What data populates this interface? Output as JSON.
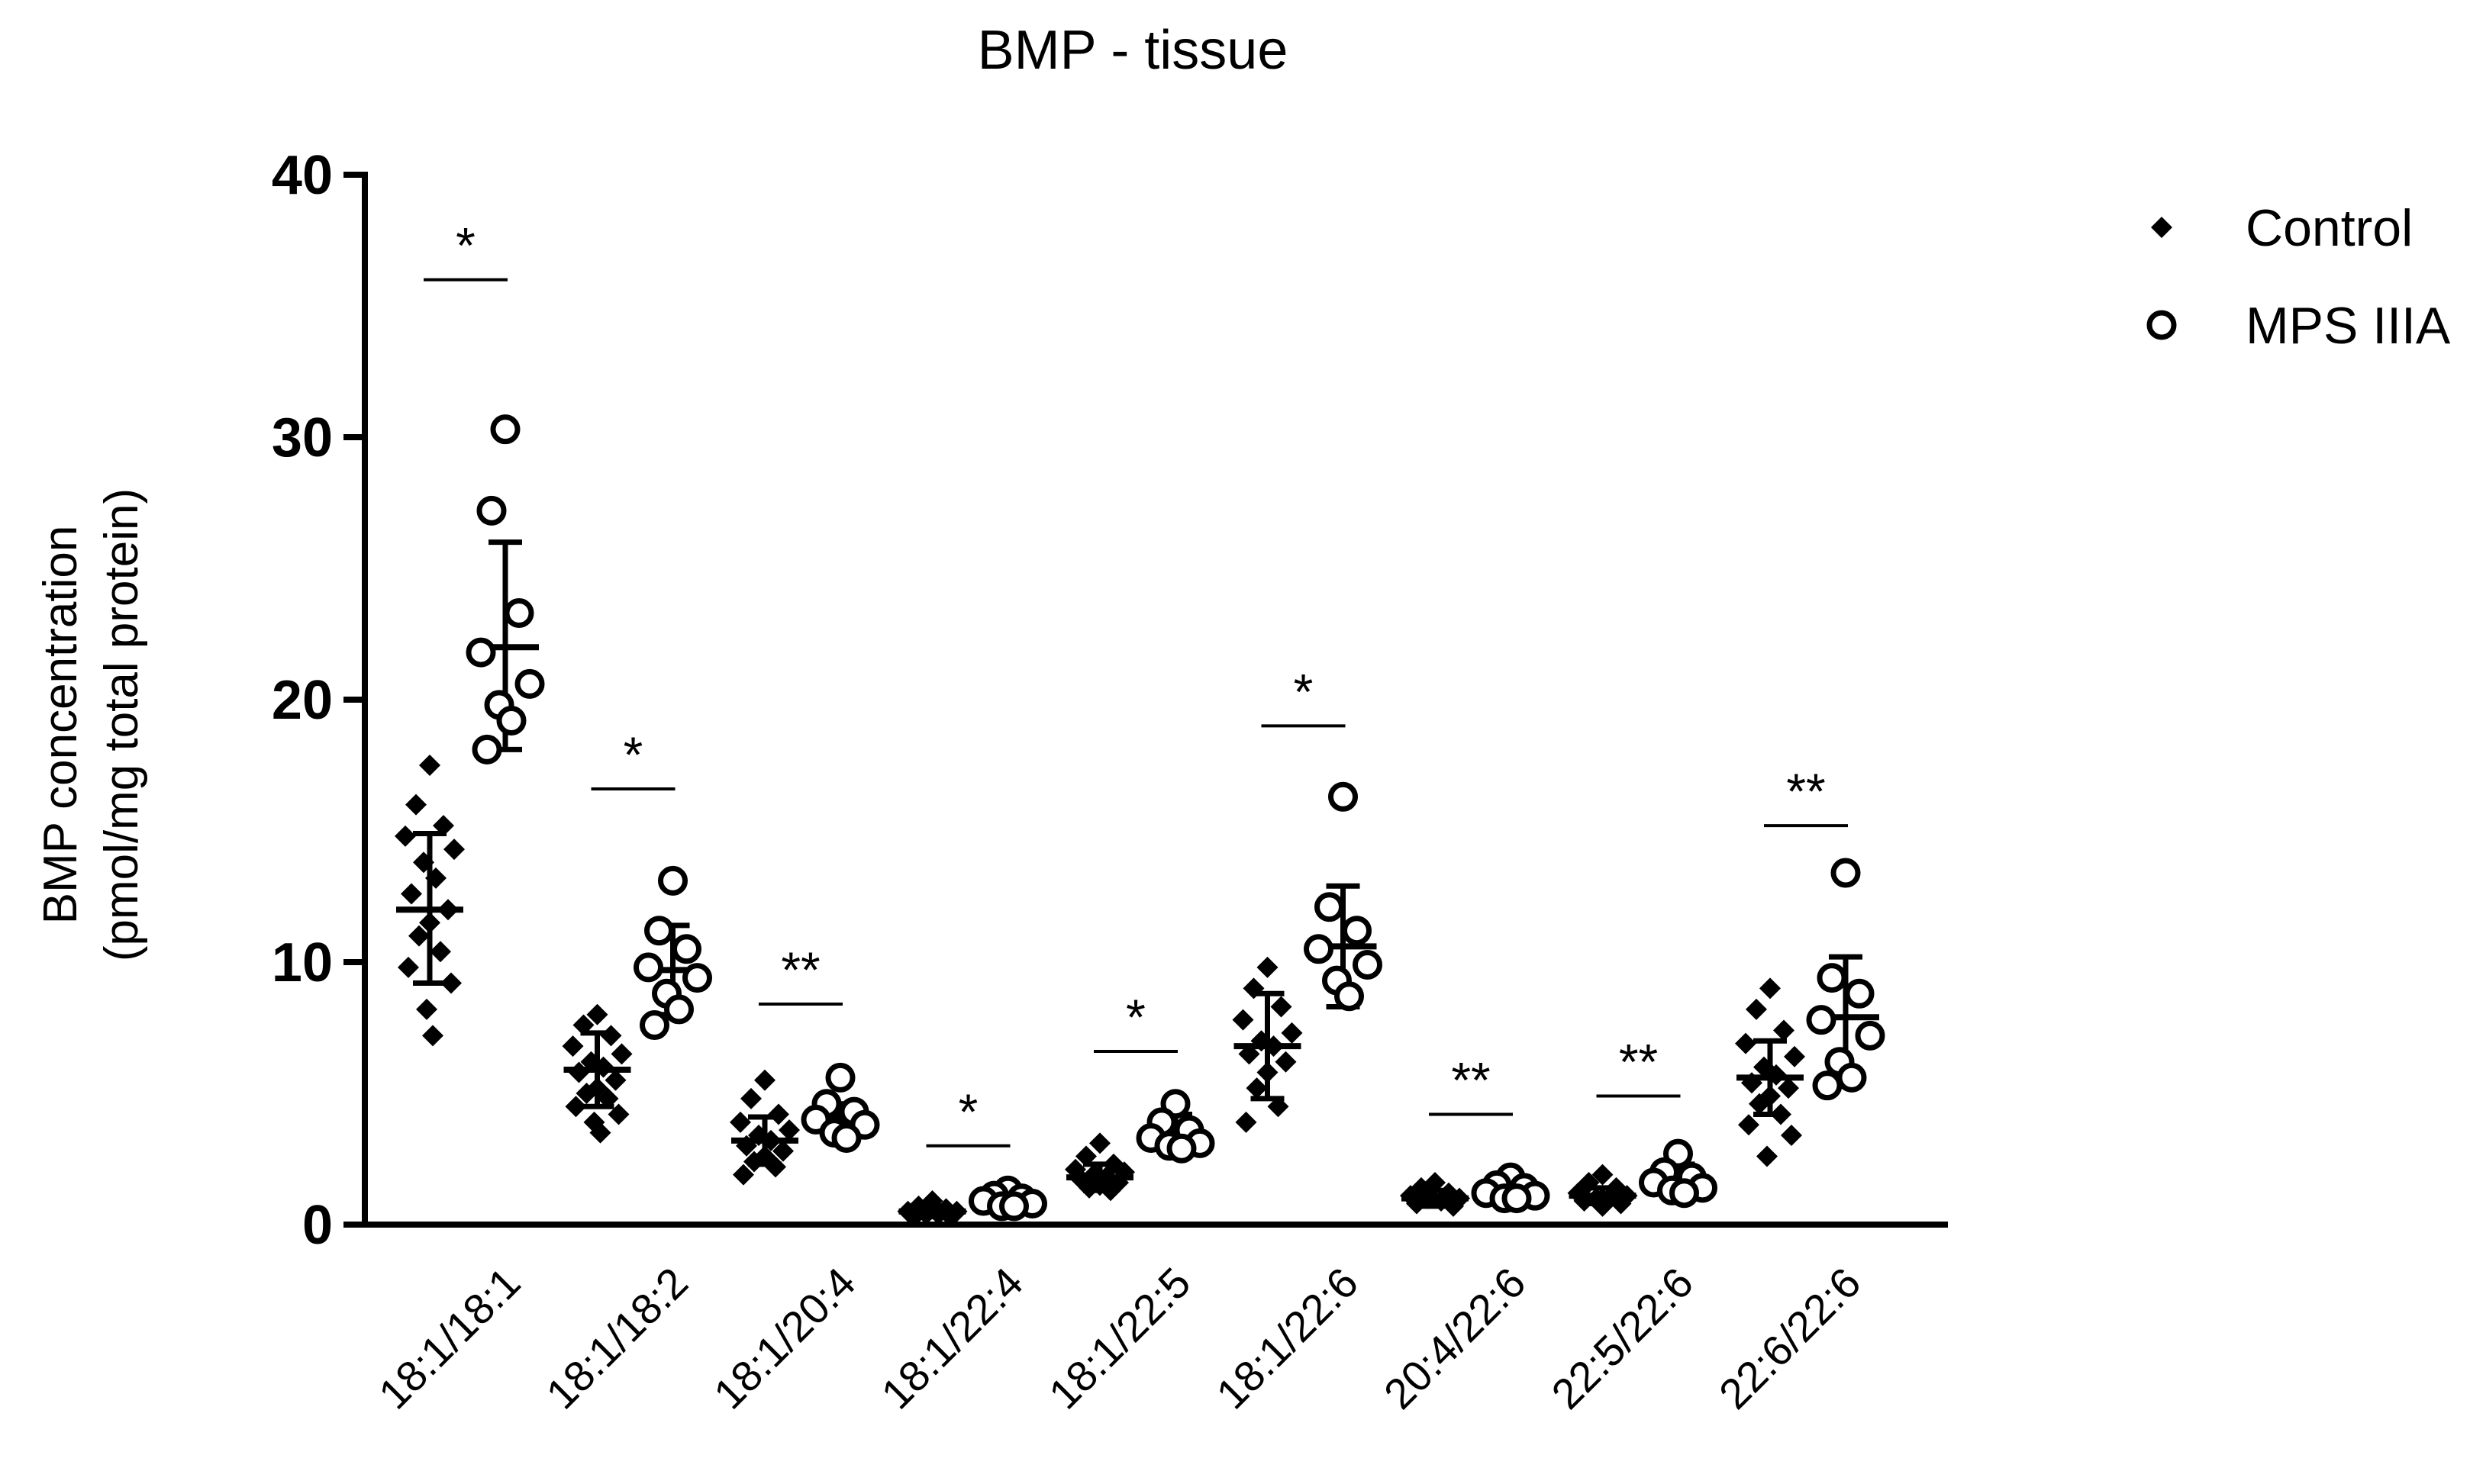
{
  "chart_data": {
    "type": "scatter",
    "title": "BMP - tissue",
    "ylabel": [
      "BMP concentration",
      "(pmol/mg total protein)"
    ],
    "xlabel": "",
    "ylim": [
      0,
      40
    ],
    "yticks": [
      0,
      10,
      20,
      30,
      40
    ],
    "categories": [
      "18:1/18:1",
      "18:1/18:2",
      "18:1/20:4",
      "18:1/22:4",
      "18:1/22:5",
      "18:1/22:6",
      "20:4/22:6",
      "22:5/22:6",
      "22:6/22:6"
    ],
    "legend_position": "top-right",
    "series": [
      {
        "name": "Control",
        "marker": "diamond-filled",
        "color": "#000000",
        "mean": [
          12.0,
          5.9,
          3.2,
          0.5,
          1.8,
          6.8,
          1.0,
          1.1,
          5.6
        ],
        "sd_upper": [
          14.9,
          7.3,
          4.1,
          0.7,
          2.3,
          8.8,
          1.3,
          1.4,
          7.0
        ],
        "sd_lower": [
          9.2,
          4.5,
          2.3,
          0.3,
          1.3,
          4.8,
          0.7,
          0.8,
          4.2
        ],
        "points": [
          [
            17.5,
            16.0,
            15.2,
            14.8,
            14.3,
            13.8,
            13.2,
            12.6,
            12.0,
            11.5,
            11.0,
            10.4,
            9.8,
            9.2,
            8.2,
            7.2
          ],
          [
            8.0,
            7.6,
            7.2,
            6.8,
            6.5,
            6.2,
            6.0,
            5.8,
            5.5,
            5.2,
            5.0,
            4.8,
            4.5,
            4.2,
            3.9,
            3.5
          ],
          [
            5.5,
            4.8,
            4.2,
            3.9,
            3.6,
            3.4,
            3.2,
            3.0,
            2.8,
            2.6,
            2.4,
            2.2,
            1.9
          ],
          [
            0.9,
            0.7,
            0.6,
            0.5,
            0.5,
            0.4,
            0.4,
            0.3,
            0.3
          ],
          [
            3.1,
            2.6,
            2.3,
            2.1,
            2.0,
            1.9,
            1.8,
            1.7,
            1.6,
            1.5,
            1.4,
            1.3
          ],
          [
            9.8,
            9.0,
            8.3,
            7.8,
            7.3,
            7.0,
            6.8,
            6.5,
            6.2,
            5.8,
            5.2,
            4.5,
            3.9
          ],
          [
            1.6,
            1.4,
            1.2,
            1.1,
            1.0,
            1.0,
            0.9,
            0.8,
            0.7
          ],
          [
            1.9,
            1.6,
            1.4,
            1.2,
            1.1,
            1.0,
            1.0,
            0.9,
            0.8,
            0.7
          ],
          [
            9.0,
            8.2,
            7.4,
            6.9,
            6.4,
            6.0,
            5.7,
            5.4,
            5.2,
            4.9,
            4.6,
            4.2,
            3.8,
            3.4,
            2.6
          ]
        ]
      },
      {
        "name": "MPS IIIA",
        "marker": "circle-open",
        "color": "#000000",
        "mean": [
          22.0,
          9.7,
          4.1,
          0.9,
          3.4,
          10.6,
          1.3,
          1.6,
          7.9
        ],
        "sd_upper": [
          26.0,
          11.4,
          4.6,
          1.1,
          4.2,
          12.9,
          1.7,
          2.3,
          10.2
        ],
        "sd_lower": [
          18.1,
          8.0,
          3.5,
          0.7,
          2.7,
          8.3,
          1.0,
          1.0,
          5.5
        ],
        "points": [
          [
            30.3,
            27.2,
            23.3,
            21.8,
            20.6,
            19.8,
            19.2,
            18.1
          ],
          [
            13.1,
            11.2,
            10.5,
            9.8,
            9.4,
            8.8,
            8.2,
            7.6
          ],
          [
            5.6,
            4.6,
            4.3,
            4.0,
            3.8,
            3.5,
            3.3
          ],
          [
            1.3,
            1.1,
            1.0,
            0.9,
            0.8,
            0.7,
            0.7
          ],
          [
            4.6,
            3.9,
            3.6,
            3.3,
            3.1,
            3.0,
            2.9
          ],
          [
            16.3,
            12.1,
            11.2,
            10.5,
            9.9,
            9.3,
            8.7
          ],
          [
            1.8,
            1.5,
            1.4,
            1.2,
            1.1,
            1.0,
            1.0
          ],
          [
            2.7,
            2.0,
            1.8,
            1.6,
            1.4,
            1.3,
            1.2
          ],
          [
            13.4,
            9.4,
            8.8,
            7.8,
            7.2,
            6.2,
            5.6,
            5.3
          ]
        ]
      }
    ],
    "significance": [
      {
        "label": "*",
        "y": 36.0
      },
      {
        "label": "*",
        "y": 16.6
      },
      {
        "label": "**",
        "y": 8.4
      },
      {
        "label": "*",
        "y": 3.0
      },
      {
        "label": "*",
        "y": 6.6
      },
      {
        "label": "*",
        "y": 19.0
      },
      {
        "label": "**",
        "y": 4.2
      },
      {
        "label": "**",
        "y": 4.9
      },
      {
        "label": "**",
        "y": 15.2
      }
    ]
  }
}
